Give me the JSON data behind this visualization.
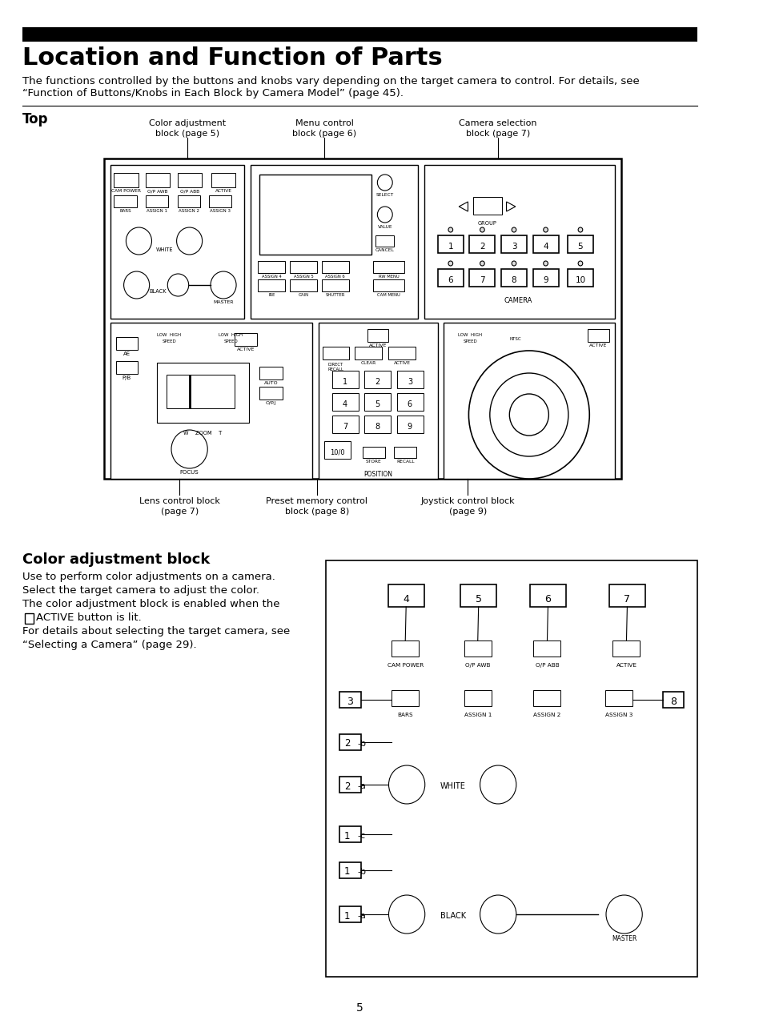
{
  "title": "Location and Function of Parts",
  "black_bar_color": "#000000",
  "bg_color": "#ffffff",
  "text_color": "#000000",
  "intro_text": "The functions controlled by the buttons and knobs vary depending on the target camera to control. For details, see\n“Function of Buttons/Knobs in Each Block by Camera Model” (page 45).",
  "section_top": "Top",
  "section_color": "Color adjustment block",
  "color_text_lines": [
    "Use to perform color adjustments on a camera.",
    "Select the target camera to adjust the color.",
    "The color adjustment block is enabled when the",
    "    ACTIVE button is lit.",
    "For details about selecting the target camera, see",
    "“Selecting a Camera” (page 29)."
  ],
  "page_number": "5"
}
